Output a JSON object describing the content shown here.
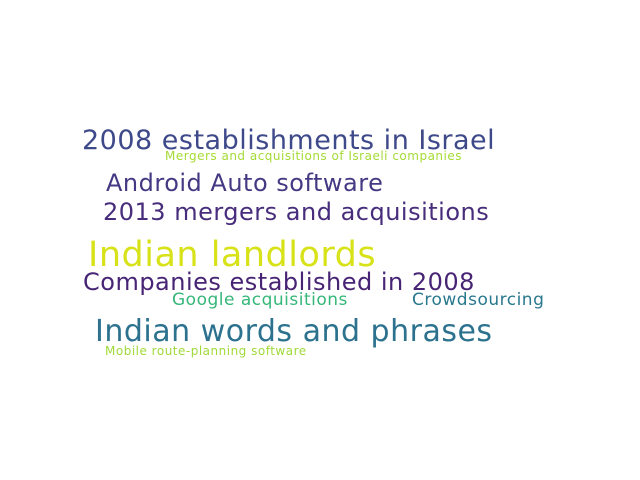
{
  "words": [
    {
      "text": "2008 establishments in Israel",
      "color": "#3e4989"
    },
    {
      "text": "Mergers and acquisitions of Israeli companies",
      "color": "#a5db36"
    },
    {
      "text": "Android Auto software",
      "color": "#443983"
    },
    {
      "text": "2013 mergers and acquisitions",
      "color": "#472d7b"
    },
    {
      "text": "Indian landlords",
      "color": "#d8e219"
    },
    {
      "text": "Companies established in 2008",
      "color": "#482475"
    },
    {
      "text": "Google acquisitions",
      "color": "#35b779"
    },
    {
      "text": "Crowdsourcing",
      "color": "#2a788e"
    },
    {
      "text": "Indian words and phrases",
      "color": "#2c728e"
    },
    {
      "text": "Mobile route-planning software",
      "color": "#a0da39"
    }
  ]
}
